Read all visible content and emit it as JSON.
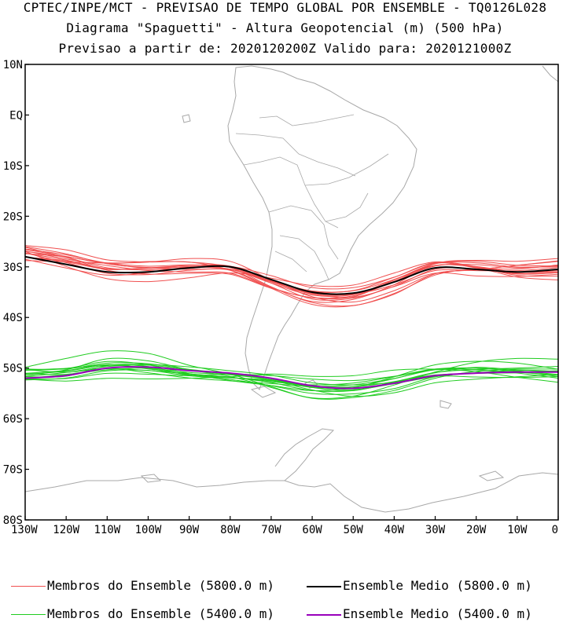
{
  "titles": {
    "line1": "CPTEC/INPE/MCT - PREVISAO DE TEMPO GLOBAL POR ENSEMBLE - TQ0126L028",
    "line2": "Diagrama \"Spaguetti\" - Altura Geopotencial (m) (500 hPa)",
    "line3": "Previsao a partir de: 2020120200Z  Valido para: 2020121000Z"
  },
  "lat_labels": [
    "10N",
    "EQ",
    "10S",
    "20S",
    "30S",
    "40S",
    "50S",
    "60S",
    "70S",
    "80S"
  ],
  "lon_labels": [
    "130W",
    "120W",
    "110W",
    "100W",
    "90W",
    "80W",
    "70W",
    "60W",
    "50W",
    "40W",
    "30W",
    "20W",
    "10W",
    "0"
  ],
  "legend": {
    "members_5800": "Membros do Ensemble (5800.0 m)",
    "mean_5800": "Ensemble Medio (5800.0 m)",
    "members_5400": "Membros do Ensemble (5400.0 m)",
    "mean_5400": "Ensemble Medio (5400.0 m)"
  },
  "colors": {
    "members_5800": "#f05050",
    "mean_5800": "#000000",
    "members_5400": "#20cc20",
    "mean_5400": "#9900bb",
    "coast": "#a8a8a8"
  },
  "chart_data": {
    "type": "line",
    "x_units": "longitude (deg, negative = W)",
    "y_units": "latitude (deg, negative = S)",
    "xlim": [
      -130,
      0
    ],
    "ylim": [
      -80,
      10
    ],
    "lon_points": [
      -130,
      -120,
      -110,
      -100,
      -90,
      -80,
      -70,
      -60,
      -50,
      -40,
      -30,
      -20,
      -10,
      0
    ],
    "series": [
      {
        "name": "mean_5800",
        "lats": [
          -28,
          -29.5,
          -31,
          -31,
          -30.2,
          -30,
          -32.5,
          -35,
          -35.2,
          -33,
          -30.2,
          -30.5,
          -31,
          -30.5
        ]
      },
      {
        "name": "mean_5400",
        "lats": [
          -52,
          -51.5,
          -50,
          -49.8,
          -50.5,
          -51,
          -52,
          -53.5,
          -54,
          -53,
          -51.5,
          -51,
          -50.8,
          -50.8
        ]
      }
    ]
  }
}
